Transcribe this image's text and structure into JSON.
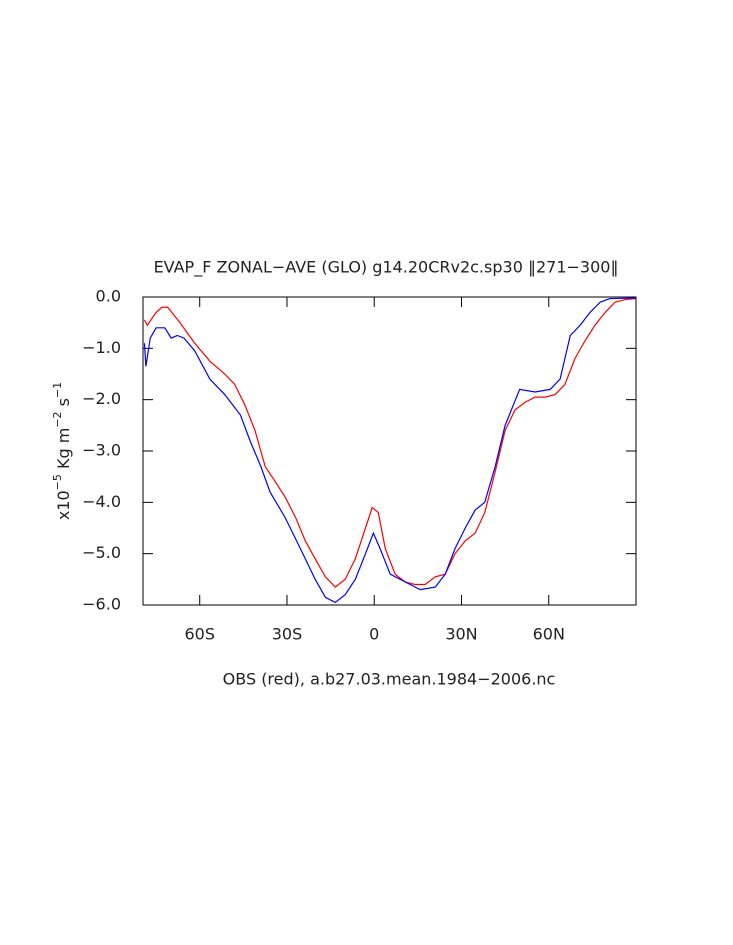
{
  "chart_data": {
    "type": "line",
    "title": "EVAP_F ZONAL−AVE (GLO) g14.20CRv2c.sp30 ‖271−300‖",
    "xlabel": "OBS (red), a.b27.03.mean.1984−2006.nc",
    "ylabel": [
      "x10",
      "−5",
      " Kg m",
      "−2",
      " s",
      "−1"
    ],
    "xlim": [
      -79.5,
      90
    ],
    "ylim": [
      -6,
      0
    ],
    "xticks": [
      {
        "value": -60,
        "label": "60S"
      },
      {
        "value": -30,
        "label": "30S"
      },
      0,
      {
        "value": 30,
        "label": "30N"
      },
      {
        "value": 60,
        "label": "60N"
      }
    ],
    "yticks": [
      {
        "value": 0,
        "label": "0.0"
      },
      {
        "value": -1,
        "label": "−1.0"
      },
      {
        "value": -2,
        "label": "−2.0"
      },
      {
        "value": -3,
        "label": "−3.0"
      },
      {
        "value": -4,
        "label": "−4.0"
      },
      {
        "value": -5,
        "label": "−5.0"
      },
      {
        "value": -6,
        "label": "−6.0"
      }
    ],
    "series": [
      {
        "color": "#ff0000",
        "x": [
          -79,
          -78,
          -75,
          -73,
          -71,
          -66.8,
          -61.7,
          -56.5,
          -51.4,
          -48,
          -44.5,
          -41,
          -37.5,
          -34,
          -30.6,
          -27,
          -23.7,
          -20.3,
          -16.8,
          -13.4,
          -10,
          -6.5,
          -3,
          -0.7,
          1.4,
          3.8,
          7.2,
          10.6,
          14,
          17.5,
          21,
          24.4,
          27.8,
          31.3,
          34.7,
          38,
          41.6,
          45,
          48.4,
          51.9,
          55.3,
          58.8,
          62.2,
          65.6,
          69,
          72.5,
          75.9,
          79.4,
          82.8,
          86.3,
          90
        ],
        "values": [
          -0.45,
          -0.55,
          -0.3,
          -0.2,
          -0.2,
          -0.5,
          -0.9,
          -1.25,
          -1.5,
          -1.7,
          -2.1,
          -2.6,
          -3.3,
          -3.6,
          -3.9,
          -4.3,
          -4.75,
          -5.1,
          -5.45,
          -5.65,
          -5.5,
          -5.1,
          -4.5,
          -4.1,
          -4.2,
          -4.9,
          -5.4,
          -5.55,
          -5.6,
          -5.6,
          -5.45,
          -5.4,
          -5.0,
          -4.75,
          -4.6,
          -4.2,
          -3.4,
          -2.6,
          -2.2,
          -2.05,
          -1.95,
          -1.95,
          -1.9,
          -1.7,
          -1.2,
          -0.85,
          -0.55,
          -0.3,
          -0.1,
          -0.05,
          -0.03
        ]
      },
      {
        "color": "#0000ff",
        "x": [
          -79,
          -78.5,
          -77,
          -75,
          -72,
          -69.8,
          -67.7,
          -65.4,
          -61.7,
          -56.5,
          -51.4,
          -46,
          -42.7,
          -39,
          -35.8,
          -30.6,
          -25.4,
          -20.3,
          -16.8,
          -13.4,
          -10,
          -6.5,
          -3,
          -0.3,
          2,
          5.5,
          10.6,
          15.8,
          21,
          24.4,
          27.8,
          31.3,
          34.7,
          38,
          41.6,
          45,
          50,
          55.3,
          60.5,
          63.9,
          67.4,
          70.8,
          74.2,
          77.7,
          81,
          90
        ],
        "values": [
          -0.9,
          -1.35,
          -0.8,
          -0.6,
          -0.6,
          -0.8,
          -0.75,
          -0.8,
          -1.05,
          -1.6,
          -1.9,
          -2.3,
          -2.8,
          -3.3,
          -3.8,
          -4.3,
          -4.9,
          -5.5,
          -5.85,
          -5.95,
          -5.8,
          -5.5,
          -5.0,
          -4.6,
          -4.9,
          -5.4,
          -5.55,
          -5.7,
          -5.65,
          -5.4,
          -4.9,
          -4.5,
          -4.15,
          -4.0,
          -3.3,
          -2.5,
          -1.8,
          -1.85,
          -1.8,
          -1.6,
          -0.75,
          -0.55,
          -0.3,
          -0.1,
          -0.03,
          -0.02
        ]
      }
    ]
  }
}
